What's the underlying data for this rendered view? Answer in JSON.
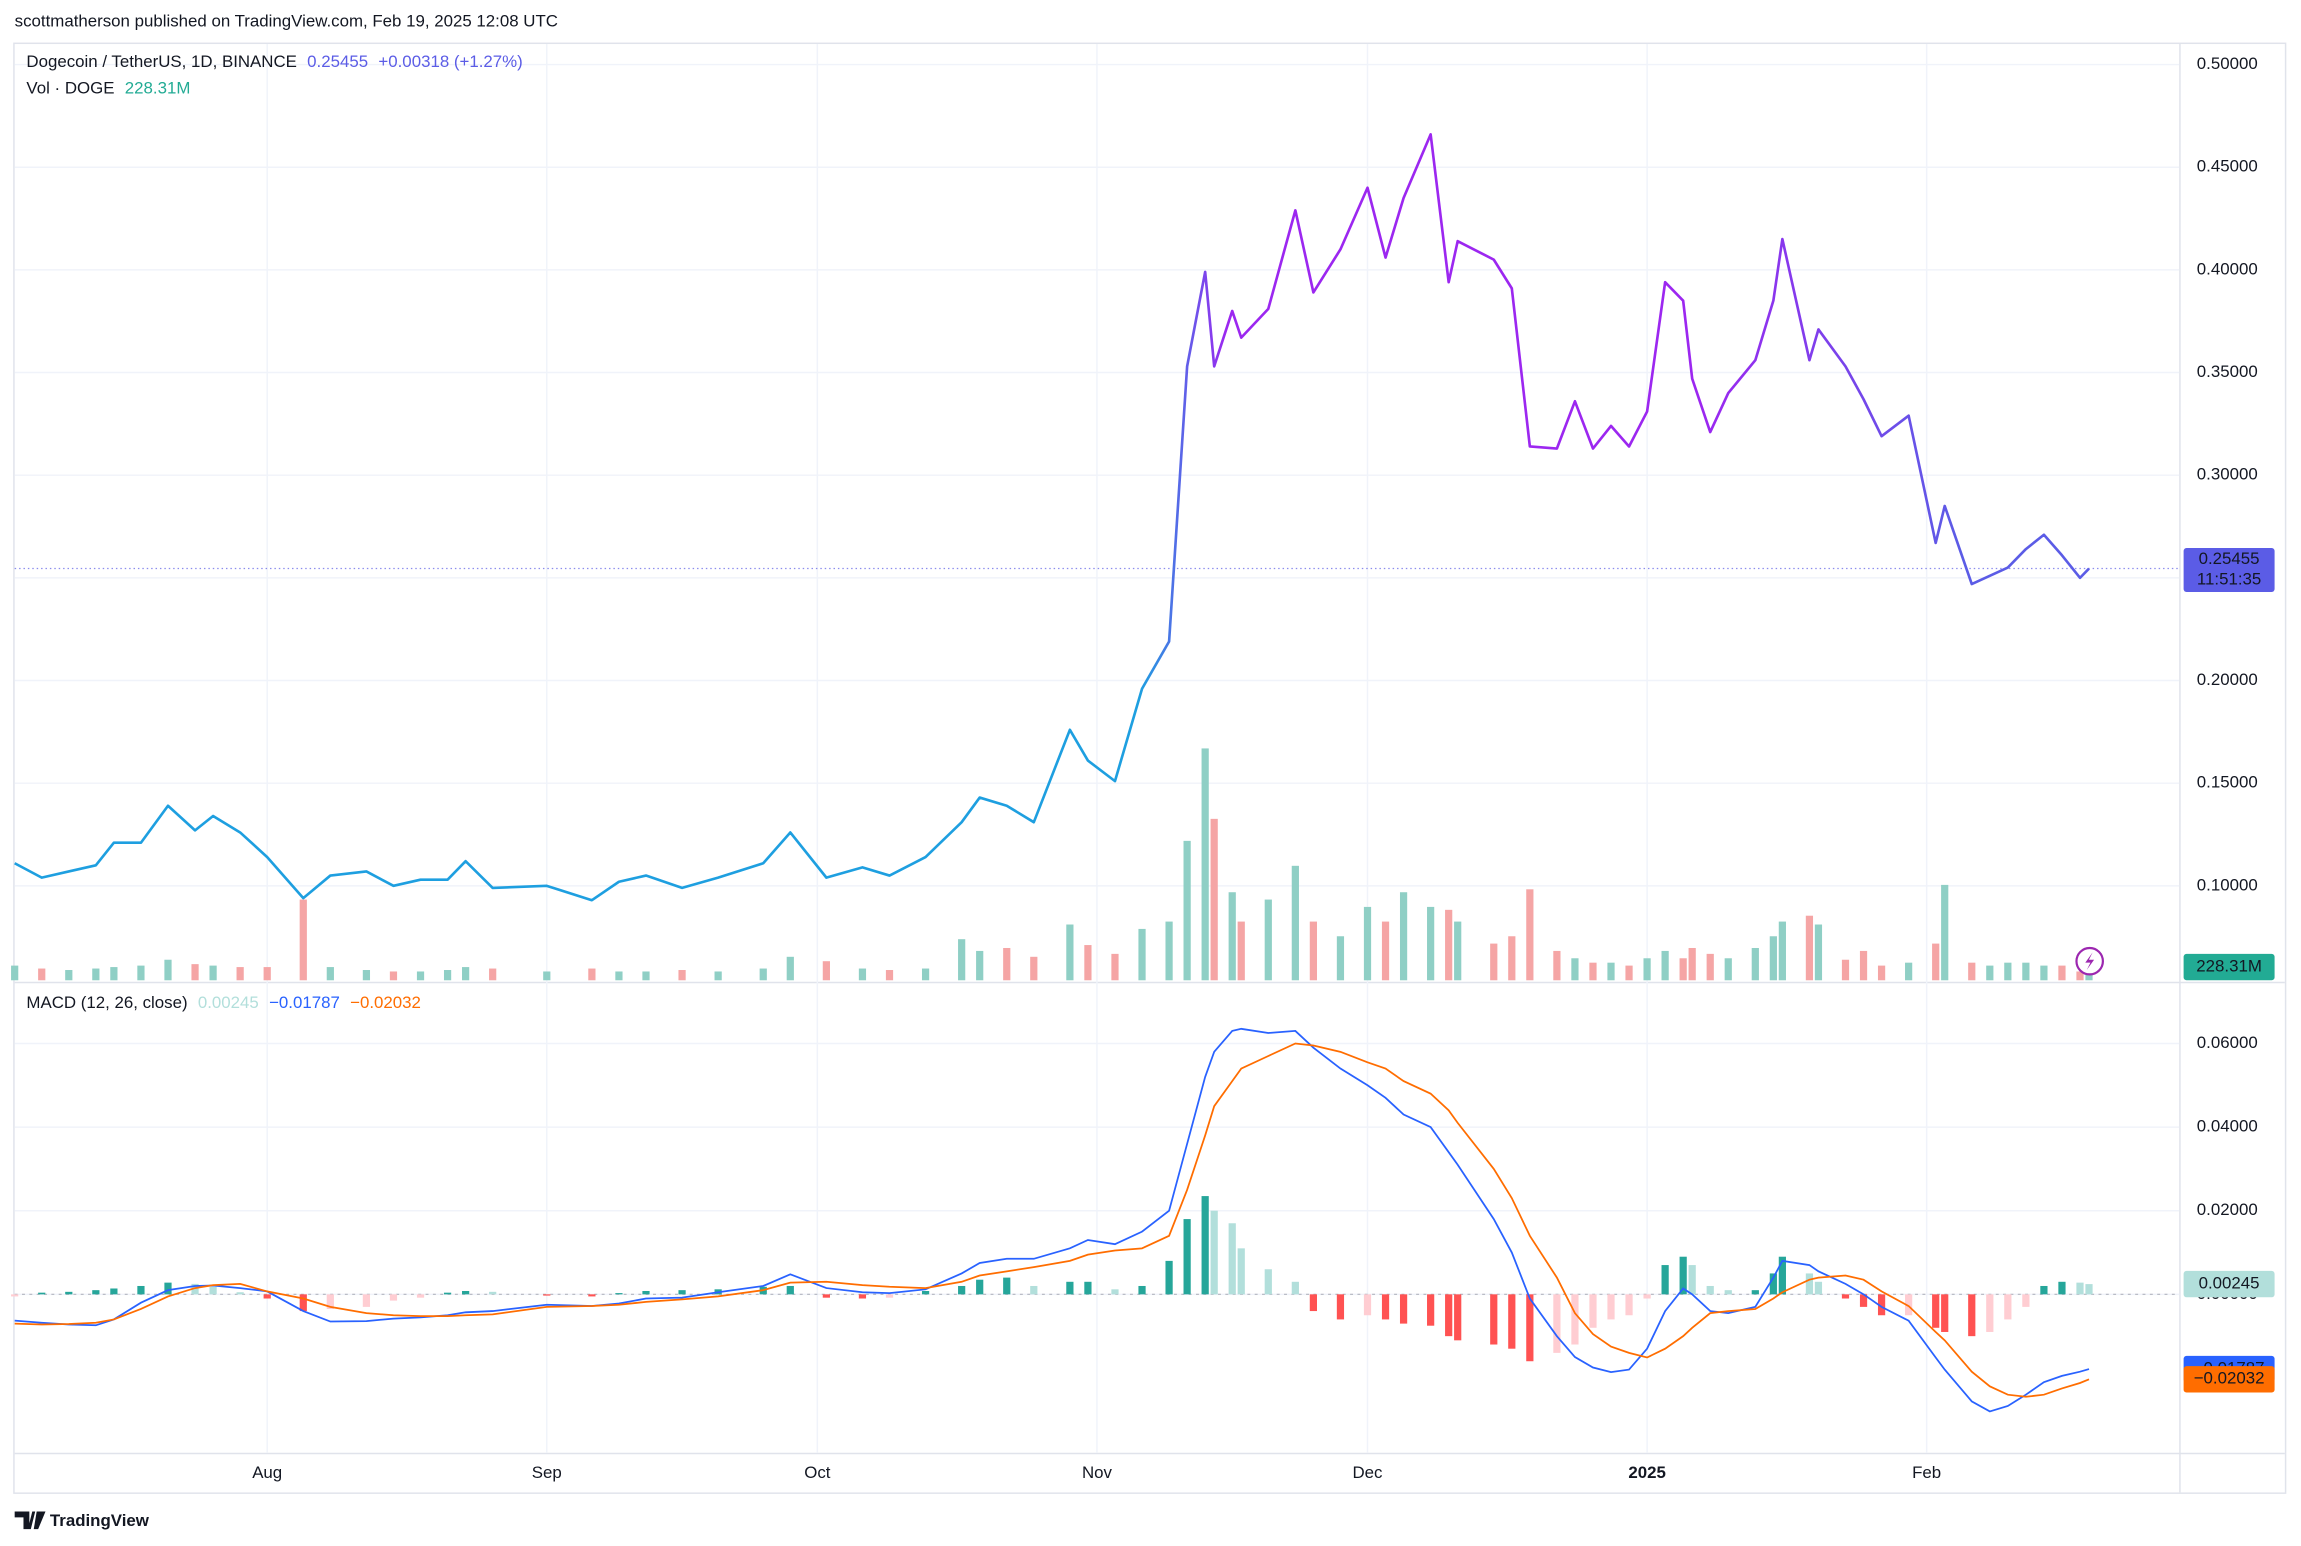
{
  "header": {
    "publisher": "scottmatherson published on TradingView.com, Feb 19, 2025 12:08 UTC"
  },
  "footer": {
    "brand": "TradingView"
  },
  "chart_data": {
    "type": "financial",
    "x": [
      "2024-07-04",
      "2024-07-07",
      "2024-07-10",
      "2024-07-13",
      "2024-07-15",
      "2024-07-18",
      "2024-07-21",
      "2024-07-24",
      "2024-07-26",
      "2024-07-29",
      "2024-08-01",
      "2024-08-05",
      "2024-08-08",
      "2024-08-12",
      "2024-08-15",
      "2024-08-18",
      "2024-08-21",
      "2024-08-23",
      "2024-08-26",
      "2024-09-01",
      "2024-09-06",
      "2024-09-09",
      "2024-09-12",
      "2024-09-16",
      "2024-09-20",
      "2024-09-25",
      "2024-09-28",
      "2024-10-02",
      "2024-10-06",
      "2024-10-09",
      "2024-10-13",
      "2024-10-17",
      "2024-10-19",
      "2024-10-22",
      "2024-10-25",
      "2024-10-29",
      "2024-10-31",
      "2024-11-03",
      "2024-11-06",
      "2024-11-09",
      "2024-11-11",
      "2024-11-13",
      "2024-11-14",
      "2024-11-16",
      "2024-11-17",
      "2024-11-20",
      "2024-11-23",
      "2024-11-25",
      "2024-11-28",
      "2024-12-01",
      "2024-12-03",
      "2024-12-05",
      "2024-12-08",
      "2024-12-10",
      "2024-12-11",
      "2024-12-15",
      "2024-12-17",
      "2024-12-19",
      "2024-12-22",
      "2024-12-24",
      "2024-12-26",
      "2024-12-28",
      "2024-12-30",
      "2025-01-01",
      "2025-01-03",
      "2025-01-05",
      "2025-01-06",
      "2025-01-08",
      "2025-01-10",
      "2025-01-13",
      "2025-01-15",
      "2025-01-16",
      "2025-01-19",
      "2025-01-20",
      "2025-01-23",
      "2025-01-25",
      "2025-01-27",
      "2025-01-30",
      "2025-02-02",
      "2025-02-03",
      "2025-02-06",
      "2025-02-08",
      "2025-02-10",
      "2025-02-12",
      "2025-02-14",
      "2025-02-16",
      "2025-02-18",
      "2025-02-19"
    ],
    "xlim": [
      "2024-07-04",
      "2025-03-01"
    ],
    "xticks": [
      {
        "value": "2024-08-01",
        "label": "Aug"
      },
      {
        "value": "2024-09-01",
        "label": "Sep"
      },
      {
        "value": "2024-10-01",
        "label": "Oct"
      },
      {
        "value": "2024-11-01",
        "label": "Nov"
      },
      {
        "value": "2024-12-01",
        "label": "Dec"
      },
      {
        "value": "2025-01-01",
        "label": "2025"
      },
      {
        "value": "2025-02-01",
        "label": "Feb"
      }
    ],
    "grid": true,
    "panes": [
      {
        "type": "line",
        "title": "Dogecoin / TetherUS, 1D, BINANCE",
        "change": "+0.00318 (+1.27%)",
        "countdown": "11:51:35",
        "ylim": [
          0.054,
          0.51
        ],
        "yticks": [
          {
            "value": 0.1,
            "label": "0.10000"
          },
          {
            "value": 0.15,
            "label": "0.15000"
          },
          {
            "value": 0.2,
            "label": "0.20000"
          },
          {
            "value": 0.25,
            "label": "0.25000"
          },
          {
            "value": 0.3,
            "label": "0.30000"
          },
          {
            "value": 0.35,
            "label": "0.35000"
          },
          {
            "value": 0.4,
            "label": "0.40000"
          },
          {
            "value": 0.45,
            "label": "0.45000"
          },
          {
            "value": 0.5,
            "label": "0.50000"
          }
        ],
        "colors": [
          "#1e9fe0",
          "#9c27f0",
          "#5b5ce6"
        ],
        "tag_color": "#5b5ce6",
        "values": [
          0.111,
          0.104,
          0.107,
          0.11,
          0.121,
          0.121,
          0.139,
          0.127,
          0.134,
          0.126,
          0.114,
          0.094,
          0.105,
          0.107,
          0.1,
          0.103,
          0.103,
          0.112,
          0.099,
          0.1,
          0.093,
          0.102,
          0.105,
          0.099,
          0.104,
          0.111,
          0.126,
          0.104,
          0.109,
          0.105,
          0.114,
          0.131,
          0.143,
          0.139,
          0.131,
          0.176,
          0.161,
          0.151,
          0.196,
          0.219,
          0.353,
          0.399,
          0.353,
          0.38,
          0.367,
          0.381,
          0.429,
          0.389,
          0.41,
          0.44,
          0.406,
          0.435,
          0.466,
          0.394,
          0.414,
          0.405,
          0.391,
          0.314,
          0.313,
          0.336,
          0.313,
          0.324,
          0.314,
          0.331,
          0.394,
          0.385,
          0.347,
          0.321,
          0.34,
          0.356,
          0.385,
          0.415,
          0.356,
          0.371,
          0.353,
          0.337,
          0.319,
          0.329,
          0.267,
          0.285,
          0.247,
          0.251,
          0.255,
          0.264,
          0.271,
          0.261,
          0.25,
          0.25455
        ]
      },
      {
        "type": "bar",
        "title": "Vol · DOGE",
        "ylim": [
          0,
          12000
        ],
        "up_color": "#8fcfc5",
        "down_color": "#f5a5a5",
        "tag_color": "#22ab94",
        "last_value_label": "228.31M",
        "values": [
          500,
          400,
          350,
          400,
          450,
          500,
          700,
          550,
          500,
          450,
          450,
          2750,
          450,
          350,
          300,
          300,
          350,
          450,
          400,
          300,
          400,
          300,
          300,
          350,
          300,
          400,
          800,
          650,
          400,
          350,
          400,
          1400,
          1000,
          1100,
          800,
          1900,
          1200,
          900,
          1750,
          2000,
          4750,
          7900,
          5500,
          3000,
          2000,
          2750,
          3900,
          2000,
          1500,
          2500,
          2000,
          3000,
          2500,
          2400,
          2000,
          1250,
          1500,
          3100,
          1000,
          750,
          600,
          600,
          500,
          750,
          1000,
          750,
          1100,
          900,
          750,
          1100,
          1500,
          2000,
          2200,
          1900,
          700,
          1000,
          500,
          600,
          1250,
          3250,
          600,
          500,
          600,
          600,
          500,
          500,
          300,
          228.31
        ]
      },
      {
        "type": "macd",
        "title": "MACD (12, 26, close)",
        "ylim": [
          -0.0379,
          0.0709
        ],
        "yticks": [
          {
            "value": 0,
            "label": "0.00000"
          },
          {
            "value": 0.02,
            "label": "0.02000"
          },
          {
            "value": 0.04,
            "label": "0.04000"
          },
          {
            "value": 0.06,
            "label": "0.06000"
          }
        ],
        "series": [
          {
            "type": "bar",
            "colors": [
              "#26a69a",
              "#b2dfdb",
              "#ffcdd2",
              "#ff5252"
            ],
            "values": [
              -0.0005,
              0.0004,
              0.0006,
              0.001,
              0.0014,
              0.002,
              0.0028,
              0.0025,
              0.0018,
              0.0005,
              -0.001,
              -0.004,
              -0.0035,
              -0.003,
              -0.0015,
              -0.0008,
              0.0004,
              0.0008,
              0.0006,
              -0.0003,
              -0.0005,
              0.0003,
              0.0008,
              0.001,
              0.0012,
              0.0018,
              0.002,
              -0.0008,
              -0.001,
              -0.0008,
              0.0008,
              0.002,
              0.0035,
              0.004,
              0.002,
              0.003,
              0.003,
              0.0012,
              0.002,
              0.008,
              0.018,
              0.0235,
              0.02,
              0.017,
              0.011,
              0.006,
              0.003,
              -0.004,
              -0.006,
              -0.005,
              -0.006,
              -0.007,
              -0.0075,
              -0.01,
              -0.011,
              -0.012,
              -0.013,
              -0.016,
              -0.014,
              -0.012,
              -0.008,
              -0.006,
              -0.005,
              -0.001,
              0.007,
              0.009,
              0.007,
              0.002,
              0.001,
              0.001,
              0.005,
              0.009,
              0.005,
              0.003,
              -0.001,
              -0.003,
              -0.005,
              -0.005,
              -0.008,
              -0.009,
              -0.01,
              -0.009,
              -0.006,
              -0.003,
              0.002,
              0.003,
              0.0028,
              0.00245
            ]
          },
          {
            "type": "line",
            "color": "#2962ff",
            "last_value_label": "−0.01787",
            "values": [
              -0.0063,
              -0.0068,
              -0.0072,
              -0.0074,
              -0.006,
              -0.002,
              0.001,
              0.002,
              0.0021,
              0.0015,
              0.0007,
              -0.004,
              -0.0065,
              -0.0064,
              -0.0058,
              -0.0055,
              -0.005,
              -0.0043,
              -0.004,
              -0.0025,
              -0.0028,
              -0.0022,
              -0.001,
              -0.0008,
              0.0005,
              0.002,
              0.0048,
              0.0015,
              0.0005,
              0.0003,
              0.0012,
              0.005,
              0.0075,
              0.0085,
              0.0085,
              0.011,
              0.013,
              0.012,
              0.015,
              0.02,
              0.036,
              0.052,
              0.058,
              0.063,
              0.0635,
              0.0625,
              0.063,
              0.059,
              0.054,
              0.05,
              0.047,
              0.043,
              0.04,
              0.034,
              0.031,
              0.018,
              0.01,
              -0.001,
              -0.01,
              -0.015,
              -0.0175,
              -0.0186,
              -0.018,
              -0.013,
              -0.004,
              0.0014,
              0.0,
              -0.004,
              -0.0045,
              -0.003,
              0.004,
              0.008,
              0.007,
              0.0055,
              0.0025,
              0.0,
              -0.003,
              -0.0063,
              -0.0151,
              -0.018,
              -0.0256,
              -0.028,
              -0.0267,
              -0.024,
              -0.021,
              -0.0195,
              -0.0185,
              -0.01787
            ]
          },
          {
            "type": "line",
            "color": "#ff6d00",
            "last_value_label": "−0.02032",
            "values": [
              -0.007,
              -0.0072,
              -0.0071,
              -0.0068,
              -0.006,
              -0.0035,
              -0.0005,
              0.0015,
              0.0022,
              0.0025,
              0.0007,
              -0.001,
              -0.003,
              -0.0045,
              -0.005,
              -0.0052,
              -0.0052,
              -0.005,
              -0.0048,
              -0.003,
              -0.0028,
              -0.0025,
              -0.0018,
              -0.0012,
              -0.0005,
              0.001,
              0.0028,
              0.003,
              0.0022,
              0.0018,
              0.0015,
              0.003,
              0.0045,
              0.0055,
              0.0065,
              0.008,
              0.0095,
              0.0105,
              0.011,
              0.014,
              0.025,
              0.038,
              0.045,
              0.051,
              0.054,
              0.057,
              0.06,
              0.0595,
              0.058,
              0.0555,
              0.054,
              0.051,
              0.048,
              0.044,
              0.041,
              0.03,
              0.023,
              0.014,
              0.004,
              -0.0045,
              -0.0095,
              -0.0125,
              -0.014,
              -0.0151,
              -0.013,
              -0.01,
              -0.008,
              -0.0045,
              -0.004,
              -0.0035,
              -0.001,
              0.0005,
              0.0035,
              0.004,
              0.0045,
              0.0035,
              0.0007,
              -0.0028,
              -0.009,
              -0.011,
              -0.0185,
              -0.022,
              -0.024,
              -0.0245,
              -0.024,
              -0.0225,
              -0.0212,
              -0.02032
            ]
          }
        ]
      }
    ]
  }
}
